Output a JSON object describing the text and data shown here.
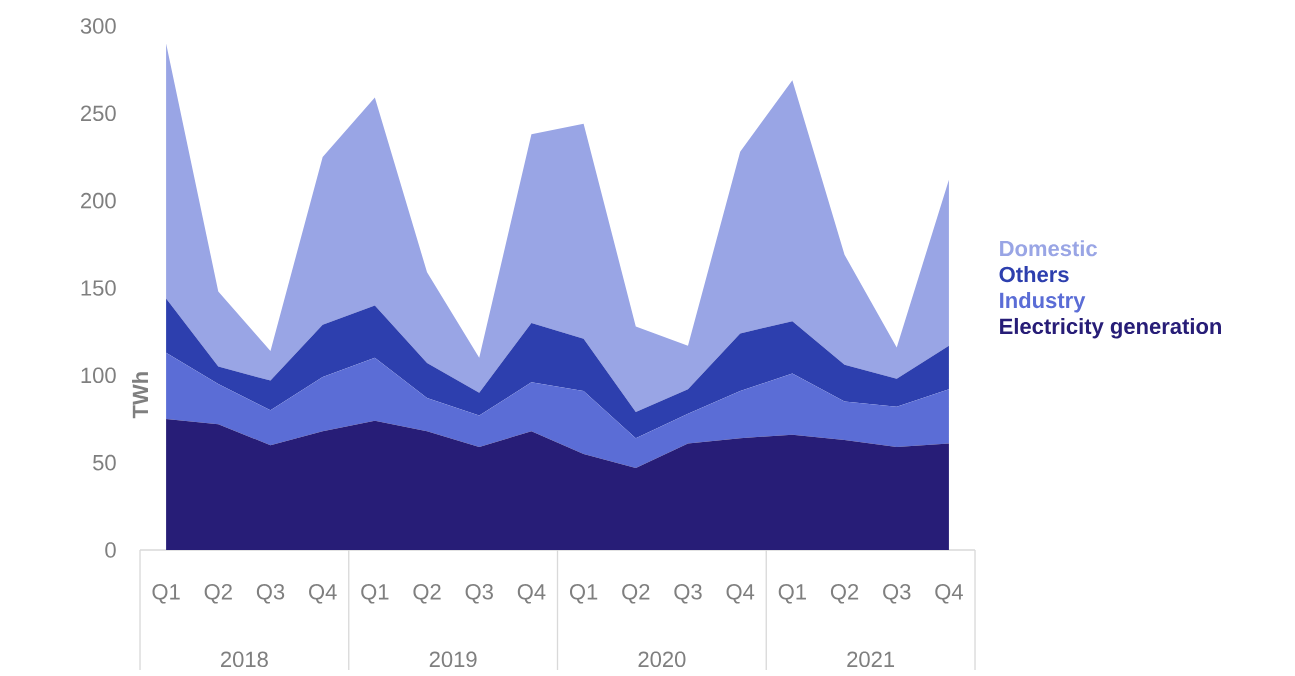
{
  "chart_data": {
    "type": "area",
    "stacked": true,
    "ylabel": "TWh",
    "categories": [
      "Q1",
      "Q2",
      "Q3",
      "Q4",
      "Q1",
      "Q2",
      "Q3",
      "Q4",
      "Q1",
      "Q2",
      "Q3",
      "Q4",
      "Q1",
      "Q2",
      "Q3",
      "Q4"
    ],
    "series": [
      {
        "name": "Electricity generation",
        "color": "#271d77",
        "values": [
          75,
          72,
          60,
          68,
          74,
          68,
          59,
          68,
          55,
          47,
          61,
          64,
          66,
          63,
          59,
          61
        ]
      },
      {
        "name": "Industry",
        "color": "#5b6dd6",
        "values": [
          38,
          23,
          20,
          31,
          36,
          19,
          18,
          28,
          36,
          17,
          17,
          27,
          35,
          22,
          23,
          31
        ]
      },
      {
        "name": "Others",
        "color": "#2d3fae",
        "values": [
          31,
          10,
          17,
          30,
          30,
          20,
          13,
          34,
          30,
          15,
          14,
          33,
          30,
          21,
          16,
          25
        ]
      },
      {
        "name": "Domestic",
        "color": "#99a5e5",
        "values": [
          146,
          43,
          17,
          96,
          119,
          52,
          20,
          108,
          123,
          49,
          25,
          104,
          138,
          63,
          18,
          95
        ]
      }
    ],
    "ylim": [
      0,
      300
    ],
    "yticks": [
      0,
      50,
      100,
      150,
      200,
      250,
      300
    ],
    "legend": "right",
    "annotations": [
      "2018",
      "2019",
      "2020",
      "2021"
    ]
  }
}
